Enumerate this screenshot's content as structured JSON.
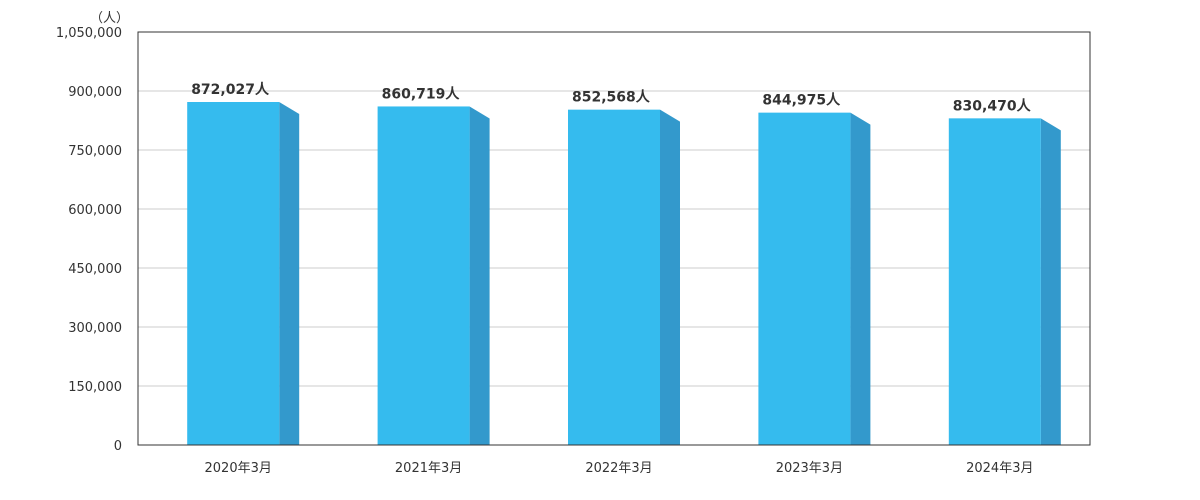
{
  "chart_data": {
    "type": "bar",
    "categories": [
      "2020年3月",
      "2021年3月",
      "2022年3月",
      "2023年3月",
      "2024年3月"
    ],
    "values": [
      872027,
      860719,
      852568,
      844975,
      830470
    ],
    "data_labels": [
      "872,027人",
      "860,719人",
      "852,568人",
      "844,975人",
      "830,470人"
    ],
    "y_unit": "（人）",
    "yticks": [
      0,
      150000,
      300000,
      450000,
      600000,
      750000,
      900000,
      1050000
    ],
    "ytick_labels": [
      "0",
      "150,000",
      "300,000",
      "450,000",
      "600,000",
      "750,000",
      "900,000",
      "1,050,000"
    ],
    "ylim": [
      0,
      1050000
    ],
    "grid": true,
    "legend": "none",
    "colors": {
      "bar_front": "#35bbee",
      "bar_side": "#3399cc",
      "grid": "#cccccc",
      "axis": "#333333"
    }
  }
}
